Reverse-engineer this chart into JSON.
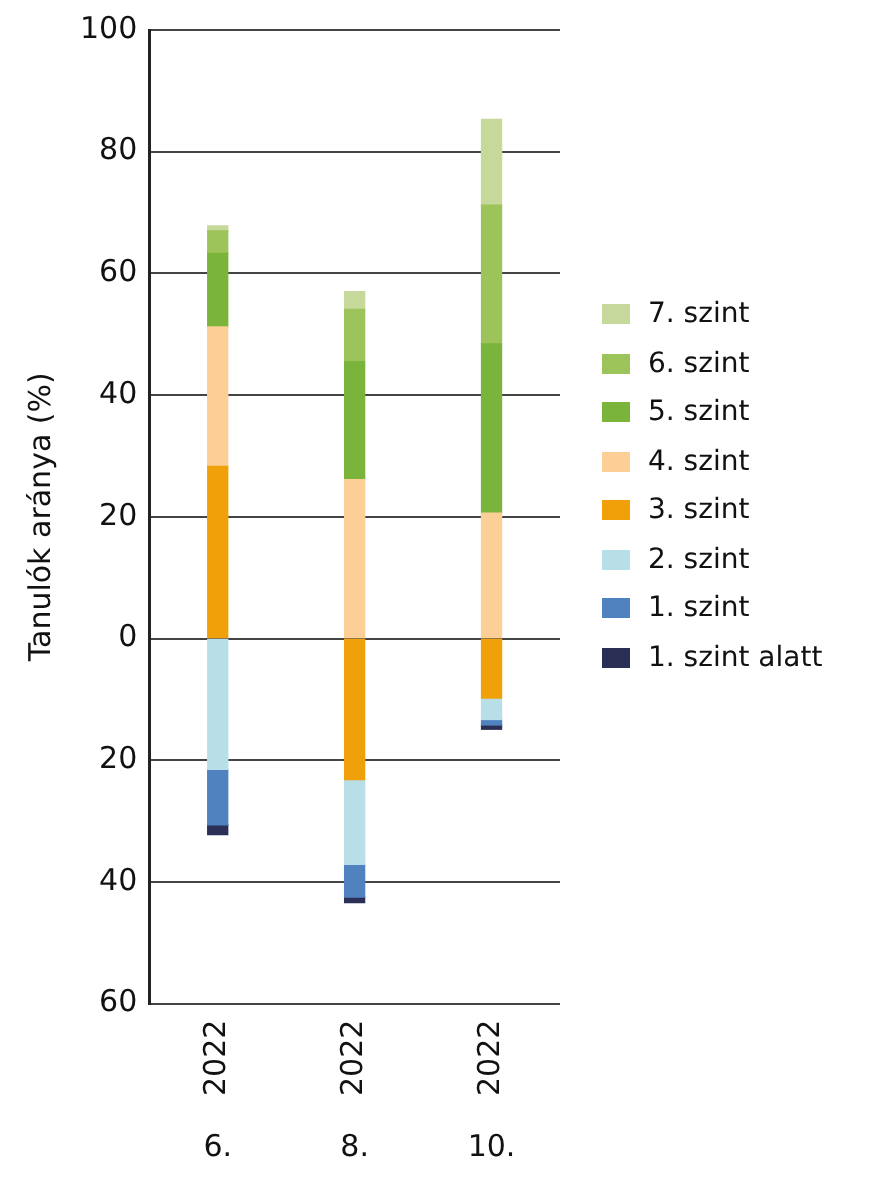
{
  "chart_data": {
    "type": "bar",
    "stacked": true,
    "ylabel": "Tanulók aránya (%)",
    "categories": [
      "2022",
      "2022",
      "2022"
    ],
    "annotations": [
      "6.",
      "8.",
      "10."
    ],
    "series": [
      {
        "name": "3. szint",
        "color": "#f0a10a",
        "values": [
          28.3,
          -23.2,
          -9.8
        ]
      },
      {
        "name": "4. szint",
        "color": "#fbcf96",
        "values": [
          22.9,
          26.1,
          20.6
        ]
      },
      {
        "name": "5. szint",
        "color": "#7ab43a",
        "values": [
          12.1,
          19.4,
          27.8
        ]
      },
      {
        "name": "6. szint",
        "color": "#9dc45a",
        "values": [
          3.7,
          8.6,
          22.8
        ]
      },
      {
        "name": "7. szint",
        "color": "#c6d89a",
        "values": [
          0.8,
          2.9,
          14.1
        ]
      },
      {
        "name": "2. szint",
        "color": "#b8dfe8",
        "values": [
          -21.5,
          -13.9,
          -3.5
        ]
      },
      {
        "name": "1. szint",
        "color": "#4f82bf",
        "values": [
          -9.1,
          -5.4,
          -0.9
        ]
      },
      {
        "name": "1. szint alatt",
        "color": "#2b2e55",
        "values": [
          -1.6,
          -0.9,
          -0.7
        ]
      }
    ],
    "ylim": [
      -60,
      100
    ],
    "yticks": [
      {
        "value": -60,
        "label": "60"
      },
      {
        "value": -40,
        "label": "40"
      },
      {
        "value": -20,
        "label": "20"
      },
      0,
      20,
      40,
      60,
      80,
      100
    ],
    "grid": "y",
    "legend": "right"
  }
}
